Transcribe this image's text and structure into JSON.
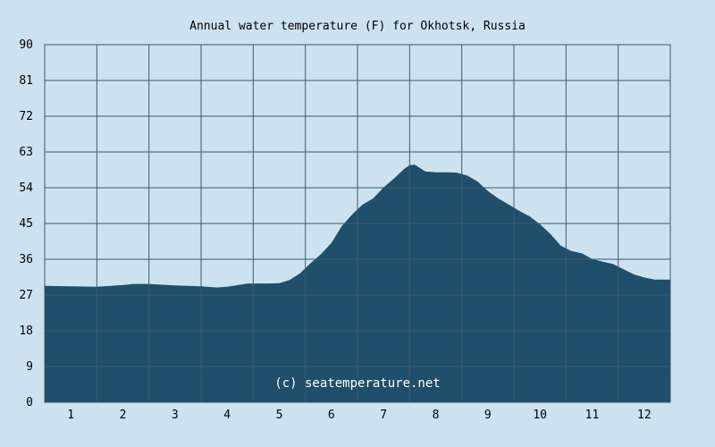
{
  "colors": {
    "background": "#cce3ef",
    "area_fill": "#1f4f6a",
    "grid": "#3c5a6e",
    "text": "#000000",
    "watermark": "#ffffff"
  },
  "chart_data": {
    "type": "area",
    "title": "Annual water temperature (F) for Okhotsk, Russia",
    "xlabel": "",
    "ylabel": "",
    "xlim": [
      0.5,
      12.5
    ],
    "ylim": [
      0,
      90
    ],
    "grid": true,
    "legend": "none",
    "yticks": [
      0,
      9,
      18,
      27,
      36,
      45,
      54,
      63,
      72,
      81,
      90
    ],
    "xticks": [
      1,
      2,
      3,
      4,
      5,
      6,
      7,
      8,
      9,
      10,
      11,
      12
    ],
    "watermark": "(c) seatemperature.net",
    "series": [
      {
        "x": [
          0.5,
          1.0,
          1.5,
          2.0,
          2.2,
          2.5,
          3.0,
          3.5,
          3.8,
          4.0,
          4.4,
          4.8,
          5.0,
          5.2,
          5.4,
          5.6,
          5.8,
          6.0,
          6.2,
          6.4,
          6.6,
          6.8,
          7.0,
          7.2,
          7.4,
          7.5,
          7.6,
          7.8,
          8.0,
          8.2,
          8.4,
          8.6,
          8.8,
          9.0,
          9.2,
          9.4,
          9.6,
          9.8,
          10.0,
          10.2,
          10.4,
          10.6,
          10.8,
          11.0,
          11.2,
          11.4,
          11.6,
          11.8,
          12.0,
          12.2,
          12.5
        ],
        "y": [
          29.3,
          29.2,
          29.1,
          29.5,
          29.8,
          29.8,
          29.4,
          29.2,
          28.9,
          29.1,
          29.9,
          29.9,
          30.0,
          30.8,
          32.5,
          35.0,
          37.3,
          40.1,
          44.4,
          47.3,
          49.8,
          51.3,
          54.1,
          56.3,
          58.8,
          59.7,
          59.8,
          58.1,
          57.9,
          57.9,
          57.8,
          57.1,
          55.6,
          53.2,
          51.3,
          49.8,
          48.2,
          46.8,
          44.8,
          42.4,
          39.4,
          38.1,
          37.5,
          36.1,
          35.4,
          34.8,
          33.5,
          32.2,
          31.4,
          30.9,
          30.9
        ]
      }
    ]
  }
}
